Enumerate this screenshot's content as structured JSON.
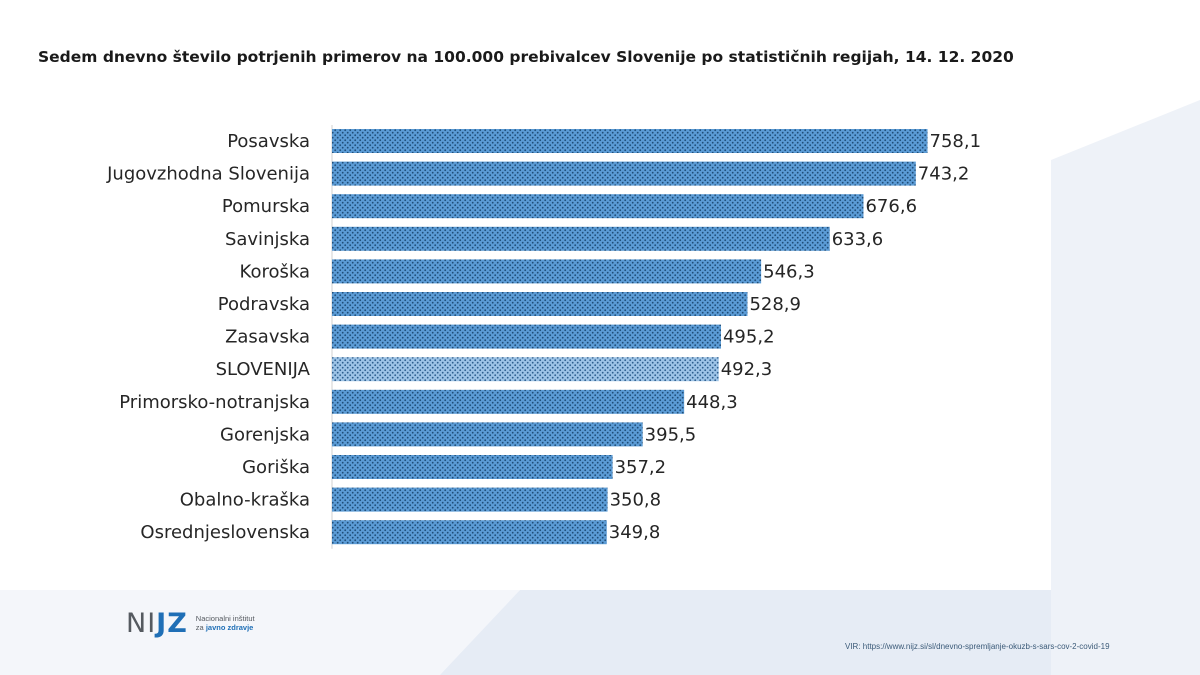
{
  "colors": {
    "bar": "#5b9bd5",
    "bar_highlight": "#9dc3e6",
    "dots": "#1f4e79",
    "deco_light": "#eef2f8",
    "deco_mid": "#dde5f0"
  },
  "logo": {
    "mark_left": "NI",
    "mark_accent": "JZ",
    "line1": "Nacionalni inštitut",
    "line2_prefix": "za",
    "line2_strong": "javno zdravje"
  },
  "source": {
    "text": "VIR: https://www.nijz.si/sl/dnevno-spremljanje-okuzb-s-sars-cov-2-covid-19"
  },
  "chart_data": {
    "type": "bar",
    "orientation": "horizontal",
    "title": "Sedem dnevno število potrjenih primerov na 100.000 prebivalcev Slovenije po statističnih regijah, 14. 12. 2020",
    "xlabel": "",
    "ylabel": "",
    "xlim": [
      0,
      760
    ],
    "grid": false,
    "legend": "none",
    "categories": [
      "Posavska",
      "Jugovzhodna Slovenija",
      "Pomurska",
      "Savinjska",
      "Koroška",
      "Podravska",
      "Zasavska",
      "SLOVENIJA",
      "Primorsko-notranjska",
      "Gorenjska",
      "Goriška",
      "Obalno-kraška",
      "Osrednjeslovenska"
    ],
    "values": [
      758.1,
      743.2,
      676.6,
      633.6,
      546.3,
      528.9,
      495.2,
      492.3,
      448.3,
      395.5,
      357.2,
      350.8,
      349.8
    ],
    "value_labels": [
      "758,1",
      "743,2",
      "676,6",
      "633,6",
      "546,3",
      "528,9",
      "495,2",
      "492,3",
      "448,3",
      "395,5",
      "357,2",
      "350,8",
      "349,8"
    ],
    "highlight_category": "SLOVENIJA"
  }
}
